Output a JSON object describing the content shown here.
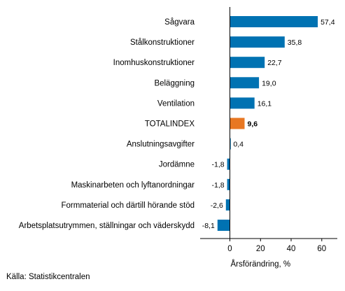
{
  "chart_data": {
    "type": "bar",
    "orientation": "horizontal",
    "categories": [
      "Sågvara",
      "Stålkonstruktioner",
      "Inomhuskonstruktioner",
      "Beläggning",
      "Ventilation",
      "TOTALINDEX",
      "Anslutningsavgifter",
      "Jordämne",
      "Maskinarbeten och lyftanordningar",
      "Formmaterial och därtill hörande stöd",
      "Arbetsplatsutrymmen, ställningar och väderskydd"
    ],
    "values": [
      57.4,
      35.8,
      22.7,
      19.0,
      16.1,
      9.6,
      0.4,
      -1.8,
      -1.8,
      -2.6,
      -8.1
    ],
    "value_labels": [
      "57,4",
      "35,8",
      "22,7",
      "19,0",
      "16,1",
      "9,6",
      "0,4",
      "-1,8",
      "-1,8",
      "-2,6",
      "-8,1"
    ],
    "highlight_category": "TOTALINDEX",
    "xlabel": "Årsförändring, %",
    "ylabel": "",
    "title": "",
    "xlim": [
      -20,
      70
    ],
    "xticks": [
      0,
      20,
      40,
      60
    ],
    "grid": false,
    "colors": {
      "bar": "#0072b2",
      "highlight": "#e87722",
      "axis": "#000000"
    }
  },
  "source": "Källa: Statistikcentralen"
}
